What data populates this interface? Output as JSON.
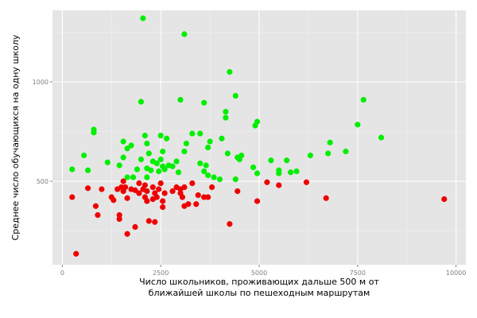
{
  "chart_data": {
    "type": "scatter",
    "xlabel_line1": "Число школьников, проживающих дальше 500 м от",
    "xlabel_line2": "ближайшей школы по пешеходным маршрутам",
    "ylabel": "Среднее число обучающихся на одну школу",
    "xlim": [
      -250,
      10250
    ],
    "ylim": [
      80,
      1360
    ],
    "x_ticks": [
      0,
      2500,
      5000,
      7500,
      10000
    ],
    "x_tick_labels": [
      "0",
      "2500",
      "5000",
      "7500",
      "10000"
    ],
    "y_ticks": [
      500,
      1000
    ],
    "y_tick_labels": [
      "500",
      "1000"
    ],
    "grid": true,
    "colors": {
      "panel": "#e5e5e5",
      "grid_major": "#ffffff",
      "grid_minor": "#f2f2f2",
      "green": "#00ee00",
      "red": "#ee0000"
    },
    "series": [
      {
        "color": "#00ee00",
        "points": [
          [
            2050,
            1320
          ],
          [
            3100,
            1240
          ],
          [
            4250,
            1050
          ],
          [
            2000,
            900
          ],
          [
            3000,
            910
          ],
          [
            3600,
            895
          ],
          [
            4400,
            930
          ],
          [
            7650,
            910
          ],
          [
            4150,
            850
          ],
          [
            4150,
            820
          ],
          [
            4950,
            800
          ],
          [
            4900,
            780
          ],
          [
            7500,
            785
          ],
          [
            8100,
            720
          ],
          [
            800,
            760
          ],
          [
            800,
            745
          ],
          [
            2500,
            730
          ],
          [
            3300,
            740
          ],
          [
            3500,
            740
          ],
          [
            2650,
            715
          ],
          [
            4050,
            715
          ],
          [
            2100,
            730
          ],
          [
            1550,
            700
          ],
          [
            3750,
            700
          ],
          [
            1750,
            680
          ],
          [
            2150,
            690
          ],
          [
            3700,
            670
          ],
          [
            6800,
            695
          ],
          [
            1650,
            665
          ],
          [
            3150,
            690
          ],
          [
            2550,
            650
          ],
          [
            550,
            630
          ],
          [
            4550,
            630
          ],
          [
            6750,
            640
          ],
          [
            7200,
            650
          ],
          [
            2200,
            640
          ],
          [
            3100,
            650
          ],
          [
            4200,
            640
          ],
          [
            4450,
            620
          ],
          [
            1550,
            620
          ],
          [
            2000,
            610
          ],
          [
            2500,
            610
          ],
          [
            2900,
            600
          ],
          [
            4500,
            610
          ],
          [
            5300,
            605
          ],
          [
            5700,
            605
          ],
          [
            1150,
            595
          ],
          [
            2300,
            600
          ],
          [
            2400,
            590
          ],
          [
            2700,
            580
          ],
          [
            3500,
            590
          ],
          [
            3650,
            580
          ],
          [
            1450,
            580
          ],
          [
            1900,
            560
          ],
          [
            2150,
            565
          ],
          [
            2800,
            575
          ],
          [
            4850,
            570
          ],
          [
            5500,
            555
          ],
          [
            5500,
            540
          ],
          [
            5800,
            545
          ],
          [
            5950,
            550
          ],
          [
            250,
            560
          ],
          [
            650,
            555
          ],
          [
            2450,
            550
          ],
          [
            2950,
            545
          ],
          [
            3600,
            550
          ],
          [
            3850,
            520
          ],
          [
            4950,
            540
          ],
          [
            1800,
            520
          ],
          [
            6300,
            630
          ],
          [
            2150,
            520
          ],
          [
            4400,
            510
          ],
          [
            1650,
            520
          ],
          [
            3700,
            530
          ],
          [
            4000,
            510
          ],
          [
            2250,
            555
          ],
          [
            2550,
            575
          ],
          [
            2600,
            560
          ]
        ]
      },
      {
        "color": "#ee0000",
        "points": [
          [
            250,
            420
          ],
          [
            650,
            465
          ],
          [
            1000,
            460
          ],
          [
            1550,
            500
          ],
          [
            1500,
            470
          ],
          [
            1600,
            470
          ],
          [
            1950,
            490
          ],
          [
            2100,
            480
          ],
          [
            2300,
            470
          ],
          [
            2500,
            490
          ],
          [
            3100,
            470
          ],
          [
            3000,
            460
          ],
          [
            3300,
            490
          ],
          [
            1400,
            460
          ],
          [
            1850,
            455
          ],
          [
            1950,
            440
          ],
          [
            2150,
            450
          ],
          [
            2350,
            440
          ],
          [
            2600,
            440
          ],
          [
            2800,
            450
          ],
          [
            3000,
            440
          ],
          [
            3450,
            430
          ],
          [
            3600,
            420
          ],
          [
            3800,
            470
          ],
          [
            4450,
            450
          ],
          [
            4950,
            400
          ],
          [
            5200,
            495
          ],
          [
            5500,
            480
          ],
          [
            6200,
            495
          ],
          [
            6700,
            415
          ],
          [
            9700,
            410
          ],
          [
            1250,
            420
          ],
          [
            1300,
            405
          ],
          [
            1650,
            415
          ],
          [
            2100,
            420
          ],
          [
            2150,
            400
          ],
          [
            2300,
            410
          ],
          [
            2400,
            420
          ],
          [
            2550,
            400
          ],
          [
            3200,
            385
          ],
          [
            3400,
            385
          ],
          [
            3100,
            375
          ],
          [
            850,
            375
          ],
          [
            900,
            330
          ],
          [
            1450,
            330
          ],
          [
            1450,
            310
          ],
          [
            2200,
            300
          ],
          [
            2350,
            295
          ],
          [
            2550,
            370
          ],
          [
            1850,
            270
          ],
          [
            4250,
            285
          ],
          [
            1650,
            235
          ],
          [
            350,
            135
          ],
          [
            2450,
            460
          ],
          [
            3050,
            420
          ],
          [
            3700,
            420
          ],
          [
            1550,
            450
          ],
          [
            1750,
            460
          ],
          [
            2050,
            460
          ],
          [
            2900,
            470
          ]
        ]
      }
    ]
  }
}
